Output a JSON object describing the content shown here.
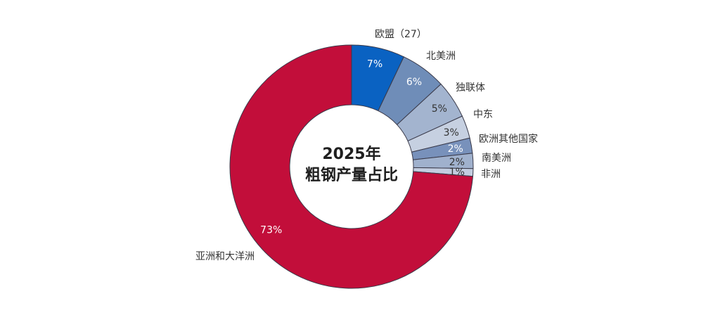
{
  "chart_data": {
    "type": "pie",
    "donut": true,
    "center_title": [
      "2025年",
      "粗钢产量占比"
    ],
    "categories": [
      "欧盟（27）",
      "北美洲",
      "独联体",
      "中东",
      "欧洲其他国家",
      "南美洲",
      "非洲",
      "亚洲和大洋洲"
    ],
    "values": [
      7,
      6,
      5,
      3,
      2,
      2,
      1,
      73
    ],
    "value_labels": [
      "7%",
      "6%",
      "5%",
      "3%",
      "2%",
      "2%",
      "1%",
      "73%"
    ],
    "colors": [
      "#0a62c2",
      "#6f8db8",
      "#a3b4cf",
      "#c6d0e1",
      "#7891bb",
      "#a0b1cd",
      "#c3cde0",
      "#c20e3a"
    ],
    "label_colors": [
      "#ffffff",
      "#ffffff",
      "#333333",
      "#333333",
      "#ffffff",
      "#333333",
      "#333333",
      "#ffffff"
    ],
    "legend": "none"
  }
}
